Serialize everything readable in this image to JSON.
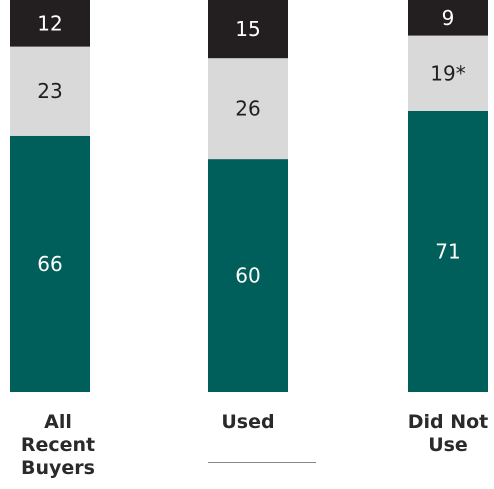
{
  "chart_data": {
    "type": "bar",
    "stacked": true,
    "normalized": true,
    "categories": [
      "All Recent Buyers",
      "Used",
      "Did Not Use"
    ],
    "category_lines": [
      [
        "All",
        "Recent",
        "Buyers"
      ],
      [
        "Used"
      ],
      [
        "Did Not",
        "Use"
      ]
    ],
    "series": [
      {
        "values": [
          66,
          60,
          71
        ],
        "labels": [
          "66",
          "60",
          "71"
        ],
        "color": "#005f5a",
        "text_color": "#ffffff"
      },
      {
        "values": [
          23,
          26,
          19
        ],
        "labels": [
          "23",
          "26",
          "19*"
        ],
        "color": "#d9d9d9",
        "text_color": "#1f1f1f"
      },
      {
        "values": [
          12,
          15,
          9
        ],
        "labels": [
          "12",
          "15",
          "9"
        ],
        "color": "#231f20",
        "text_color": "#ffffff"
      }
    ],
    "title": "",
    "xlabel": "",
    "ylabel": ""
  }
}
